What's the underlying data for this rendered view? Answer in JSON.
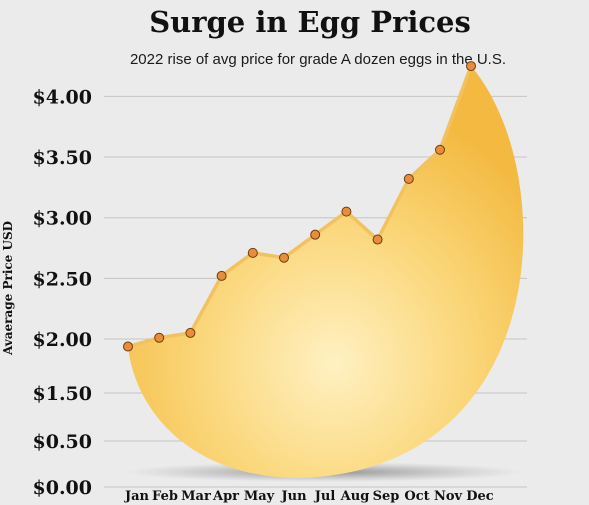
{
  "chart_data": {
    "type": "line",
    "title": "Surge in Egg Prices",
    "subtitle": "2022 rise of avg price for grade A dozen eggs in the U.S.",
    "ylabel": "Avaerage Price USD",
    "xlabel": "",
    "categories": [
      "Jan",
      "Feb",
      "Mar",
      "Apr",
      "May",
      "Jun",
      "Jul",
      "Aug",
      "Sep",
      "Oct",
      "Nov",
      "Dec"
    ],
    "series": [
      {
        "values": [
          1.93,
          2.01,
          2.05,
          2.52,
          2.71,
          2.67,
          2.86,
          3.05,
          2.82,
          3.32,
          3.56,
          4.25
        ]
      }
    ],
    "y_tick_values": [
      0,
      0.5,
      1.5,
      2.0,
      2.5,
      3.0,
      3.5,
      4.0
    ],
    "y_tick_labels": [
      "$0.00",
      "$0.50",
      "$1.50",
      "$2.00",
      "$2.50",
      "$3.00",
      "$3.50",
      "$4.00"
    ],
    "ylim": [
      0,
      4.25
    ],
    "grid": true,
    "colors": {
      "line": "#f2c261",
      "marker_fill": "#e98d3a",
      "marker_stroke": "#6b3f12",
      "egg_light": "#fff1c2",
      "egg_dark": "#f3b940"
    }
  }
}
